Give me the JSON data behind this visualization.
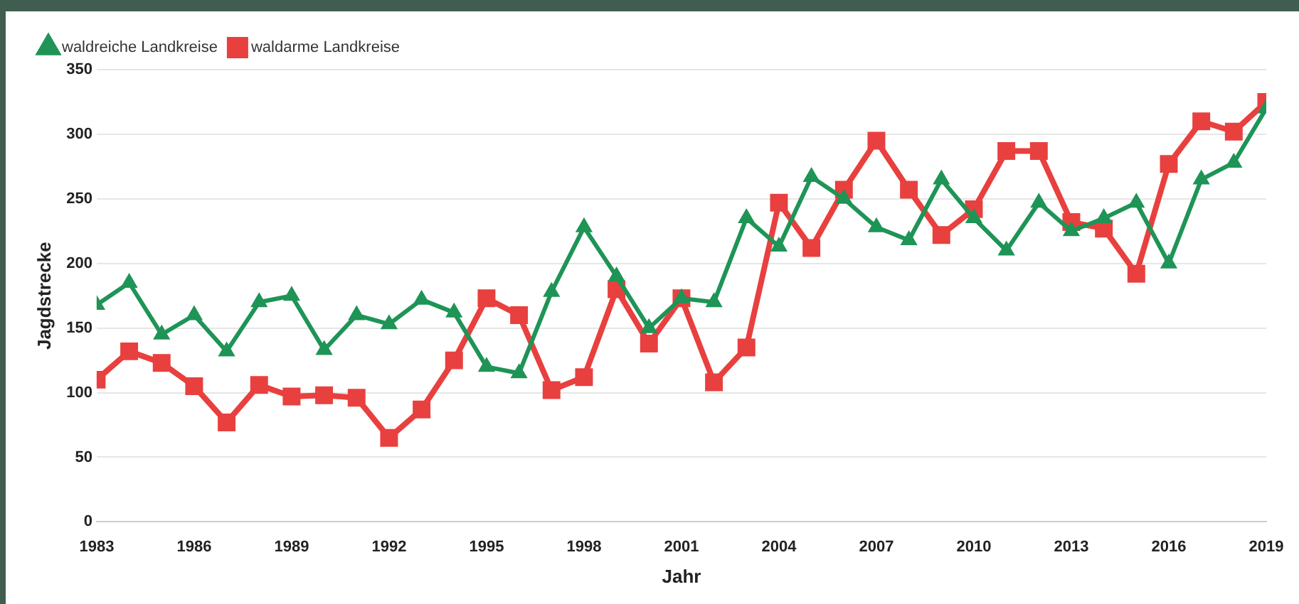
{
  "chart_data": {
    "type": "line",
    "xlabel": "Jahr",
    "ylabel": "Jagdstrecke",
    "x": [
      1983,
      1984,
      1985,
      1986,
      1987,
      1988,
      1989,
      1990,
      1991,
      1992,
      1993,
      1994,
      1995,
      1996,
      1997,
      1998,
      1999,
      2000,
      2001,
      2002,
      2003,
      2004,
      2005,
      2006,
      2007,
      2008,
      2009,
      2010,
      2011,
      2012,
      2013,
      2014,
      2015,
      2016,
      2017,
      2018,
      2019
    ],
    "series": [
      {
        "name": "waldreiche Landkreise",
        "color": "#1e9456",
        "marker": "triangle",
        "values": [
          168,
          185,
          145,
          160,
          132,
          170,
          175,
          133,
          160,
          153,
          172,
          162,
          120,
          115,
          178,
          228,
          190,
          150,
          173,
          170,
          235,
          213,
          267,
          250,
          228,
          218,
          265,
          235,
          210,
          247,
          225,
          235,
          247,
          200,
          265,
          278,
          320
        ]
      },
      {
        "name": "waldarme Landkreise",
        "color": "#e8403f",
        "marker": "square",
        "values": [
          110,
          132,
          123,
          105,
          77,
          106,
          97,
          98,
          96,
          65,
          87,
          125,
          173,
          160,
          102,
          112,
          180,
          138,
          173,
          108,
          135,
          247,
          212,
          257,
          295,
          257,
          222,
          242,
          287,
          287,
          232,
          227,
          192,
          277,
          310,
          302,
          325
        ]
      }
    ],
    "xlim": [
      1983,
      2019
    ],
    "xticks": [
      1983,
      1986,
      1989,
      1992,
      1995,
      1998,
      2001,
      2004,
      2007,
      2010,
      2013,
      2016,
      2019
    ],
    "ylim": [
      0,
      350
    ],
    "yticks": [
      0,
      50,
      100,
      150,
      200,
      250,
      300,
      350
    ],
    "grid": "y",
    "legend": "top left",
    "line_style": "solid"
  }
}
